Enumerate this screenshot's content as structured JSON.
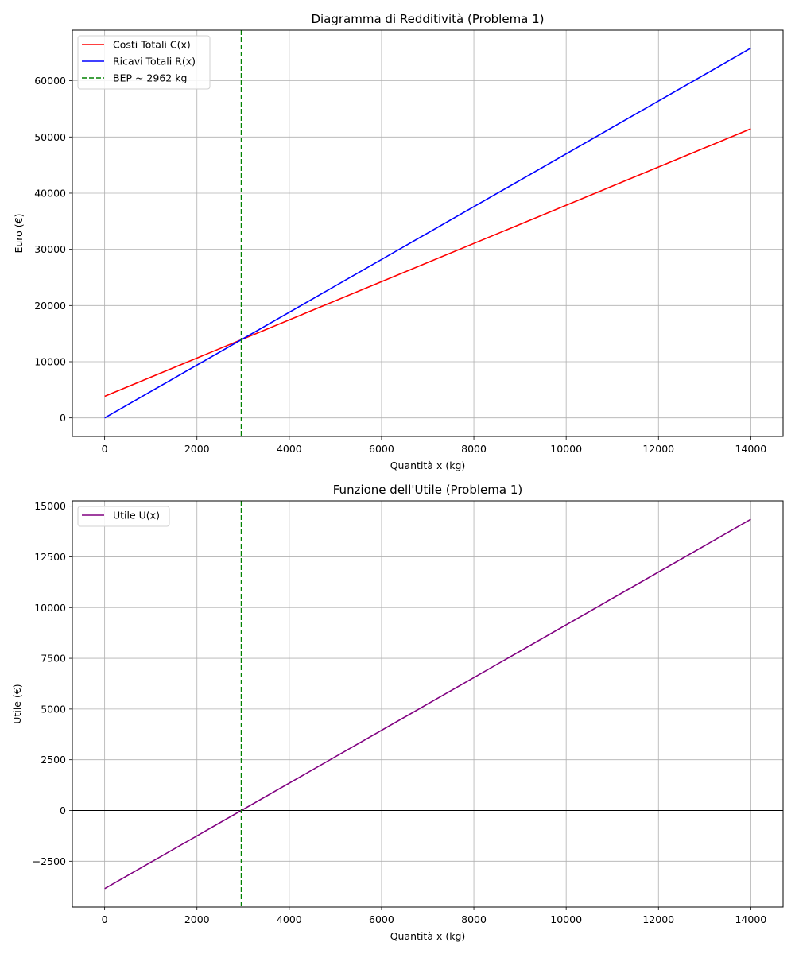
{
  "chart_data": [
    {
      "type": "line",
      "title": "Diagramma di Redditività (Problema 1)",
      "xlabel": "Quantità x (kg)",
      "ylabel": "Euro (€)",
      "xlim": [
        -700,
        14700
      ],
      "ylim": [
        -3300,
        69000
      ],
      "xticks": [
        0,
        2000,
        4000,
        6000,
        8000,
        10000,
        12000,
        14000
      ],
      "yticks": [
        0,
        10000,
        20000,
        30000,
        40000,
        50000,
        60000
      ],
      "grid": true,
      "legend_position": "upper left",
      "series": [
        {
          "name": "Costi Totali C(x)",
          "color": "#ff0000",
          "style": "solid",
          "x": [
            0,
            14000
          ],
          "y": [
            3850,
            51450
          ]
        },
        {
          "name": "Ricavi Totali R(x)",
          "color": "#0000ff",
          "style": "solid",
          "x": [
            0,
            14000
          ],
          "y": [
            0,
            65800
          ]
        },
        {
          "name": "BEP ~ 2962 kg",
          "color": "#008000",
          "style": "dashed",
          "vline": 2962
        }
      ]
    },
    {
      "type": "line",
      "title": "Funzione dell'Utile (Problema 1)",
      "xlabel": "Quantità x (kg)",
      "ylabel": "Utile (€)",
      "xlim": [
        -700,
        14700
      ],
      "ylim": [
        -4760,
        15260
      ],
      "xticks": [
        0,
        2000,
        4000,
        6000,
        8000,
        10000,
        12000,
        14000
      ],
      "yticks": [
        -2500,
        0,
        2500,
        5000,
        7500,
        10000,
        12500,
        15000
      ],
      "grid": true,
      "legend_position": "upper left",
      "hline": 0,
      "series": [
        {
          "name": "Utile U(x)",
          "color": "#800080",
          "style": "solid",
          "x": [
            0,
            14000
          ],
          "y": [
            -3850,
            14350
          ]
        },
        {
          "name": "BEP",
          "color": "#008000",
          "style": "dashed",
          "vline": 2962,
          "in_legend": false
        }
      ]
    }
  ]
}
